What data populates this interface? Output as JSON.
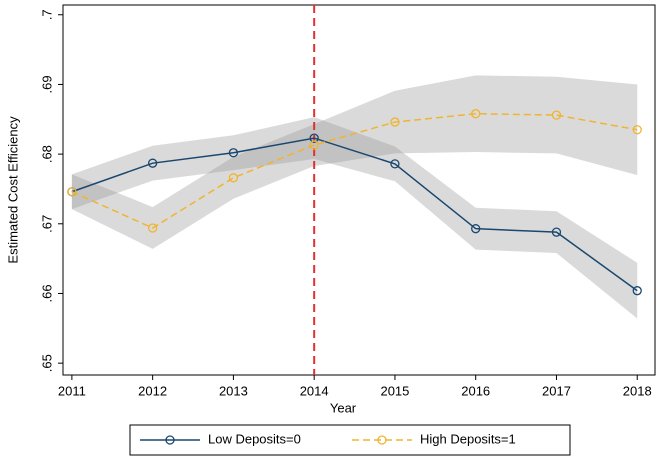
{
  "chart_data": {
    "type": "line",
    "x_label": "Year",
    "y_label": "Estimated Cost Efficiency",
    "x": [
      2011,
      2012,
      2013,
      2014,
      2015,
      2016,
      2017,
      2018
    ],
    "series": [
      {
        "name": "Low Deposits=0",
        "color": "#1a476f",
        "dash": false,
        "values": [
          0.6746,
          0.6787,
          0.6802,
          0.6823,
          0.6786,
          0.6693,
          0.6688,
          0.6604
        ],
        "ci_lower": [
          0.6721,
          0.6762,
          0.6777,
          0.6793,
          0.6761,
          0.6663,
          0.6658,
          0.6564
        ],
        "ci_upper": [
          0.6771,
          0.6812,
          0.6827,
          0.6853,
          0.6811,
          0.6723,
          0.6718,
          0.6644
        ]
      },
      {
        "name": "High Deposits=1",
        "color": "#f0b430",
        "dash": true,
        "values": [
          0.6746,
          0.6694,
          0.6766,
          0.6813,
          0.6846,
          0.6858,
          0.6856,
          0.6835
        ],
        "ci_lower": [
          0.6721,
          0.6664,
          0.6736,
          0.6783,
          0.6801,
          0.6803,
          0.6801,
          0.677
        ],
        "ci_upper": [
          0.6771,
          0.6724,
          0.6796,
          0.6843,
          0.6891,
          0.6913,
          0.6911,
          0.69
        ]
      }
    ],
    "band_color": "rgba(150,150,150,0.35)",
    "vline": 2014,
    "vline_color": "#e03030",
    "xlim": [
      2010.89,
      2018.22
    ],
    "xticks": [
      2011,
      2012,
      2013,
      2014,
      2015,
      2016,
      2017,
      2018
    ],
    "ylim": [
      0.6483,
      0.7014
    ],
    "yticks": [
      {
        "value": 0.65,
        "label": ".65"
      },
      {
        "value": 0.66,
        "label": ".66"
      },
      {
        "value": 0.67,
        "label": ".67"
      },
      {
        "value": 0.68,
        "label": ".68"
      },
      {
        "value": 0.69,
        "label": ".69"
      },
      {
        "value": 0.7,
        "label": ".7"
      }
    ],
    "grid": false,
    "legend": "bottom"
  }
}
